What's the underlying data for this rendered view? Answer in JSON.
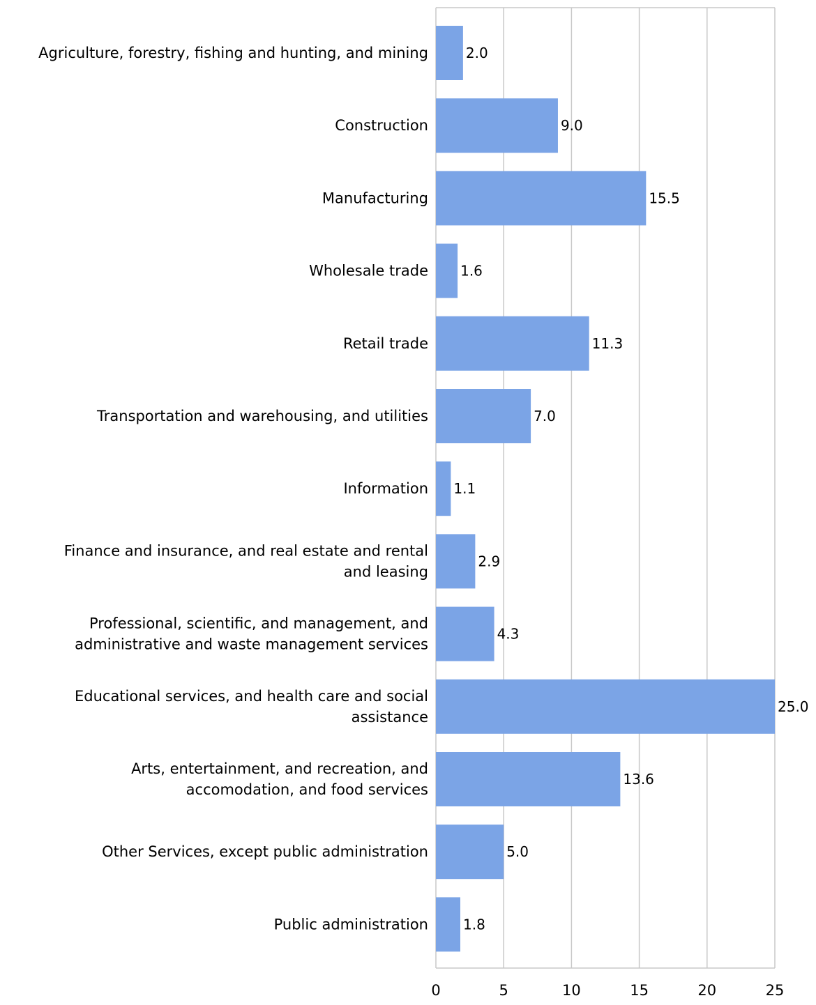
{
  "chart_data": {
    "type": "bar",
    "orientation": "horizontal",
    "title": "",
    "xlabel": "",
    "ylabel": "",
    "categories": [
      [
        "Agriculture, forestry, fishing and hunting, and mining"
      ],
      [
        "Construction"
      ],
      [
        "Manufacturing"
      ],
      [
        "Wholesale trade"
      ],
      [
        "Retail trade"
      ],
      [
        "Transportation and warehousing, and utilities"
      ],
      [
        "Information"
      ],
      [
        "Finance and insurance, and real estate and rental",
        "and leasing"
      ],
      [
        "Professional, scientific, and management, and",
        "administrative and waste management services"
      ],
      [
        "Educational services, and health care and social",
        "assistance"
      ],
      [
        "Arts, entertainment, and recreation, and",
        "accomodation, and food services"
      ],
      [
        "Other Services, except public administration"
      ],
      [
        "Public administration"
      ]
    ],
    "values": [
      2.0,
      9.0,
      15.5,
      1.6,
      11.3,
      7.0,
      1.1,
      2.9,
      4.3,
      25.0,
      13.6,
      5.0,
      1.8
    ],
    "value_labels": [
      "2.0",
      "9.0",
      "15.5",
      "1.6",
      "11.3",
      "7.0",
      "1.1",
      "2.9",
      "4.3",
      "25.0",
      "13.6",
      "5.0",
      "1.8"
    ],
    "xlim": [
      0,
      25
    ],
    "xticks": [
      0,
      5,
      10,
      15,
      20,
      25
    ],
    "xtick_labels": [
      "0",
      "5",
      "10",
      "15",
      "20",
      "25"
    ],
    "grid": "vertical",
    "legend": "none",
    "colors": {
      "bar": "#7ba4e6",
      "grid": "#c8c8c8",
      "axis": "#c8c8c8",
      "text": "#000000"
    }
  }
}
